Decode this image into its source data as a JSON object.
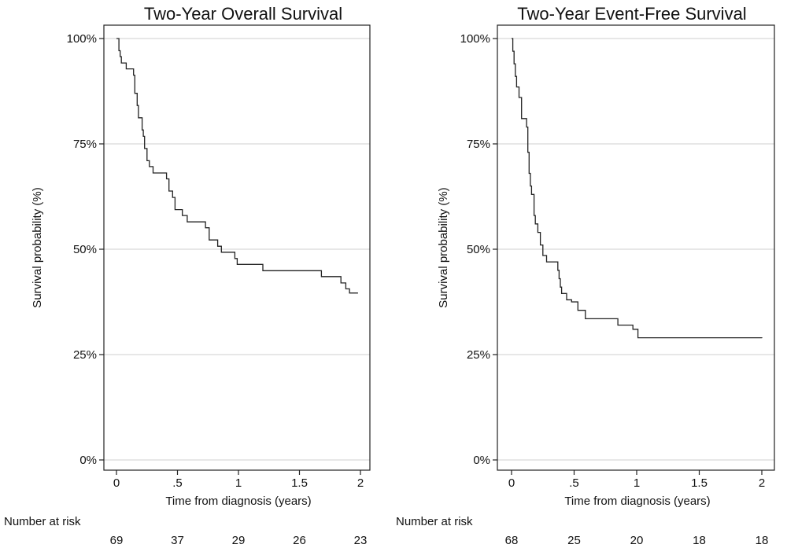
{
  "chart_data": [
    {
      "type": "line",
      "step": true,
      "title": "Two-Year Overall Survival",
      "xlabel": "Time from diagnosis (years)",
      "ylabel": "Survival probability (%)",
      "xlim": [
        0,
        2
      ],
      "ylim": [
        0,
        100
      ],
      "x_ticks": [
        "0",
        ".5",
        "1",
        "1.5",
        "2"
      ],
      "y_ticks": [
        "0%",
        "25%",
        "50%",
        "75%",
        "100%"
      ],
      "grid": "horizontal",
      "risk_table": {
        "label": "Number at risk",
        "times": [
          0,
          0.5,
          1,
          1.5,
          2
        ],
        "values": [
          "69",
          "37",
          "29",
          "26",
          "23"
        ]
      },
      "series": [
        {
          "points": [
            [
              0,
              100
            ],
            [
              0.02,
              97.1
            ],
            [
              0.03,
              95.7
            ],
            [
              0.04,
              94.2
            ],
            [
              0.08,
              92.8
            ],
            [
              0.14,
              91.3
            ],
            [
              0.15,
              87
            ],
            [
              0.17,
              84.1
            ],
            [
              0.18,
              81.2
            ],
            [
              0.21,
              78.3
            ],
            [
              0.22,
              76.8
            ],
            [
              0.23,
              73.9
            ],
            [
              0.25,
              71
            ],
            [
              0.27,
              69.6
            ],
            [
              0.3,
              68.1
            ],
            [
              0.41,
              66.7
            ],
            [
              0.43,
              63.8
            ],
            [
              0.46,
              62.3
            ],
            [
              0.48,
              59.4
            ],
            [
              0.54,
              58
            ],
            [
              0.58,
              56.5
            ],
            [
              0.73,
              55.1
            ],
            [
              0.76,
              52.2
            ],
            [
              0.83,
              50.7
            ],
            [
              0.86,
              49.3
            ],
            [
              0.97,
              47.8
            ],
            [
              0.99,
              46.4
            ],
            [
              1.2,
              44.9
            ],
            [
              1.68,
              43.5
            ],
            [
              1.84,
              42
            ],
            [
              1.88,
              40.6
            ],
            [
              1.91,
              39.6
            ],
            [
              1.98,
              39.6
            ]
          ]
        }
      ]
    },
    {
      "type": "line",
      "step": true,
      "title": "Two-Year Event-Free Survival",
      "xlabel": "Time from diagnosis (years)",
      "ylabel": "Survival probability (%)",
      "xlim": [
        0,
        2
      ],
      "ylim": [
        0,
        100
      ],
      "x_ticks": [
        "0",
        ".5",
        "1",
        "1.5",
        "2"
      ],
      "y_ticks": [
        "0%",
        "25%",
        "50%",
        "75%",
        "100%"
      ],
      "grid": "horizontal",
      "risk_table": {
        "label": "Number at risk",
        "times": [
          0,
          0.5,
          1,
          1.5,
          2
        ],
        "values": [
          "68",
          "25",
          "20",
          "18",
          "18"
        ]
      },
      "series": [
        {
          "points": [
            [
              0,
              100
            ],
            [
              0.01,
              97
            ],
            [
              0.02,
              94
            ],
            [
              0.03,
              91
            ],
            [
              0.04,
              88.5
            ],
            [
              0.06,
              86
            ],
            [
              0.08,
              81
            ],
            [
              0.12,
              79
            ],
            [
              0.13,
              73
            ],
            [
              0.14,
              68
            ],
            [
              0.15,
              65
            ],
            [
              0.16,
              63
            ],
            [
              0.18,
              58
            ],
            [
              0.19,
              56
            ],
            [
              0.21,
              54
            ],
            [
              0.23,
              51
            ],
            [
              0.25,
              48.5
            ],
            [
              0.28,
              47
            ],
            [
              0.37,
              45
            ],
            [
              0.38,
              43
            ],
            [
              0.39,
              41
            ],
            [
              0.4,
              39.5
            ],
            [
              0.44,
              38
            ],
            [
              0.48,
              37.5
            ],
            [
              0.53,
              35.5
            ],
            [
              0.59,
              33.5
            ],
            [
              0.66,
              33.5
            ],
            [
              0.85,
              32
            ],
            [
              0.97,
              31
            ],
            [
              1.01,
              29
            ],
            [
              2,
              28.9
            ]
          ]
        }
      ]
    }
  ]
}
